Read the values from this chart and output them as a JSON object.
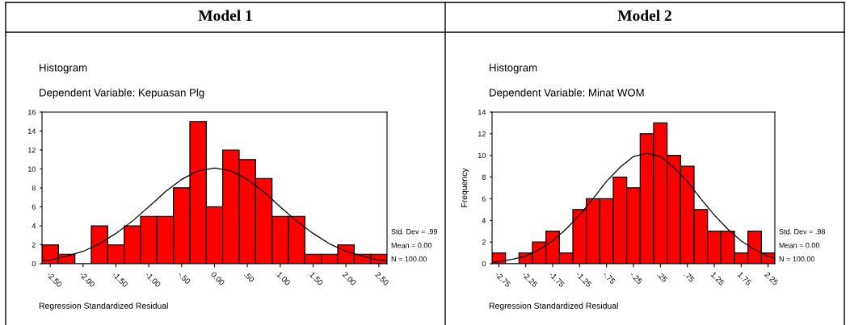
{
  "chart_data": [
    {
      "type": "histogram",
      "title": "Model 1",
      "subtitle": "Histogram",
      "xlabel": "Regression Standardized Residual",
      "annotations": [
        "Dependent Variable: Kepuasan Plg",
        "Std. Dev = .99",
        "Mean = 0.00",
        "N = 100.00"
      ],
      "bins": [
        -2.625,
        -2.375,
        -2.125,
        -1.875,
        -1.625,
        -1.375,
        -1.125,
        -0.875,
        -0.625,
        -0.375,
        -0.125,
        0.125,
        0.375,
        0.625,
        0.875,
        1.125,
        1.375,
        1.625,
        1.875,
        2.125,
        2.375,
        2.625
      ],
      "values": [
        2,
        1,
        0,
        4,
        2,
        4,
        5,
        5,
        8,
        15,
        6,
        12,
        11,
        9,
        5,
        5,
        1,
        1,
        2,
        1,
        1
      ],
      "color": "#ff0000",
      "series": [
        {
          "type": "line",
          "color": "#000000",
          "x": [
            -2.625,
            -2.5,
            -2.25,
            -2.0,
            -1.75,
            -1.5,
            -1.25,
            -1.0,
            -0.75,
            -0.5,
            -0.25,
            0,
            0.25,
            0.5,
            0.75,
            1.0,
            1.25,
            1.5,
            1.75,
            2.0,
            2.25,
            2.5,
            2.625
          ],
          "values": [
            0.3,
            0.4,
            0.8,
            1.3,
            2.1,
            3.2,
            4.5,
            6.0,
            7.6,
            8.9,
            9.8,
            10.1,
            9.8,
            8.9,
            7.6,
            6.0,
            4.5,
            3.2,
            2.1,
            1.3,
            0.8,
            0.4,
            0.3
          ]
        }
      ],
      "xlim": [
        -2.625,
        2.625
      ],
      "xticks": [
        {
          "value": -2.5,
          "label": "-2.50"
        },
        {
          "value": -2.0,
          "label": "-2.00"
        },
        {
          "value": -1.5,
          "label": "-1.50"
        },
        {
          "value": -1.0,
          "label": "-1.00"
        },
        {
          "value": -0.5,
          "label": "-.50"
        },
        {
          "value": 0,
          "label": "0.00"
        },
        {
          "value": 0.5,
          "label": ".50"
        },
        {
          "value": 1.0,
          "label": "1.00"
        },
        {
          "value": 1.5,
          "label": "1.50"
        },
        {
          "value": 2.0,
          "label": "2.00"
        },
        {
          "value": 2.5,
          "label": "2.50"
        }
      ],
      "ylim": [
        0,
        16
      ],
      "yticks": [
        0,
        2,
        4,
        6,
        8,
        10,
        12,
        14,
        16
      ],
      "grid": false,
      "legend": false
    },
    {
      "type": "histogram",
      "title": "Model 2",
      "subtitle": "Histogram",
      "xlabel": "Regression Standardized Residual",
      "ylabel": "Frequency",
      "annotations": [
        "Dependent Variable: Minat WOM",
        "Std. Dev = .98",
        "Mean = 0.00",
        "N = 100.00"
      ],
      "bins": [
        -2.875,
        -2.625,
        -2.375,
        -2.125,
        -1.875,
        -1.625,
        -1.375,
        -1.125,
        -0.875,
        -0.625,
        -0.375,
        -0.125,
        0.125,
        0.375,
        0.625,
        0.875,
        1.125,
        1.375,
        1.625,
        1.875,
        2.125,
        2.375
      ],
      "values": [
        1,
        0,
        1,
        2,
        3,
        1,
        5,
        6,
        6,
        8,
        7,
        12,
        13,
        10,
        9,
        5,
        3,
        3,
        1,
        3,
        1
      ],
      "color": "#ff0000",
      "series": [
        {
          "type": "line",
          "color": "#000000",
          "x": [
            -2.875,
            -2.75,
            -2.5,
            -2.25,
            -2.0,
            -1.75,
            -1.5,
            -1.25,
            -1.0,
            -0.75,
            -0.5,
            -0.25,
            0,
            0.25,
            0.5,
            0.75,
            1.0,
            1.25,
            1.5,
            1.75,
            2.0,
            2.25,
            2.375
          ],
          "values": [
            0.1,
            0.2,
            0.4,
            0.7,
            1.3,
            2.1,
            3.2,
            4.5,
            6.0,
            7.6,
            8.9,
            9.9,
            10.2,
            9.9,
            8.9,
            7.6,
            6.0,
            4.5,
            3.2,
            2.1,
            1.3,
            0.7,
            0.5
          ]
        }
      ],
      "xlim": [
        -2.875,
        2.375
      ],
      "xticks": [
        {
          "value": -2.75,
          "label": "-2.75"
        },
        {
          "value": -2.25,
          "label": "-2.25"
        },
        {
          "value": -1.75,
          "label": "-1.75"
        },
        {
          "value": -1.25,
          "label": "-1.25"
        },
        {
          "value": -0.75,
          "label": "-.75"
        },
        {
          "value": -0.25,
          "label": "-.25"
        },
        {
          "value": 0.25,
          "label": ".25"
        },
        {
          "value": 0.75,
          "label": ".75"
        },
        {
          "value": 1.25,
          "label": "1.25"
        },
        {
          "value": 1.75,
          "label": "1.75"
        },
        {
          "value": 2.25,
          "label": "2.25"
        }
      ],
      "ylim": [
        0,
        14
      ],
      "yticks": [
        0,
        2,
        4,
        6,
        8,
        10,
        12,
        14
      ],
      "grid": false,
      "legend": false
    }
  ]
}
